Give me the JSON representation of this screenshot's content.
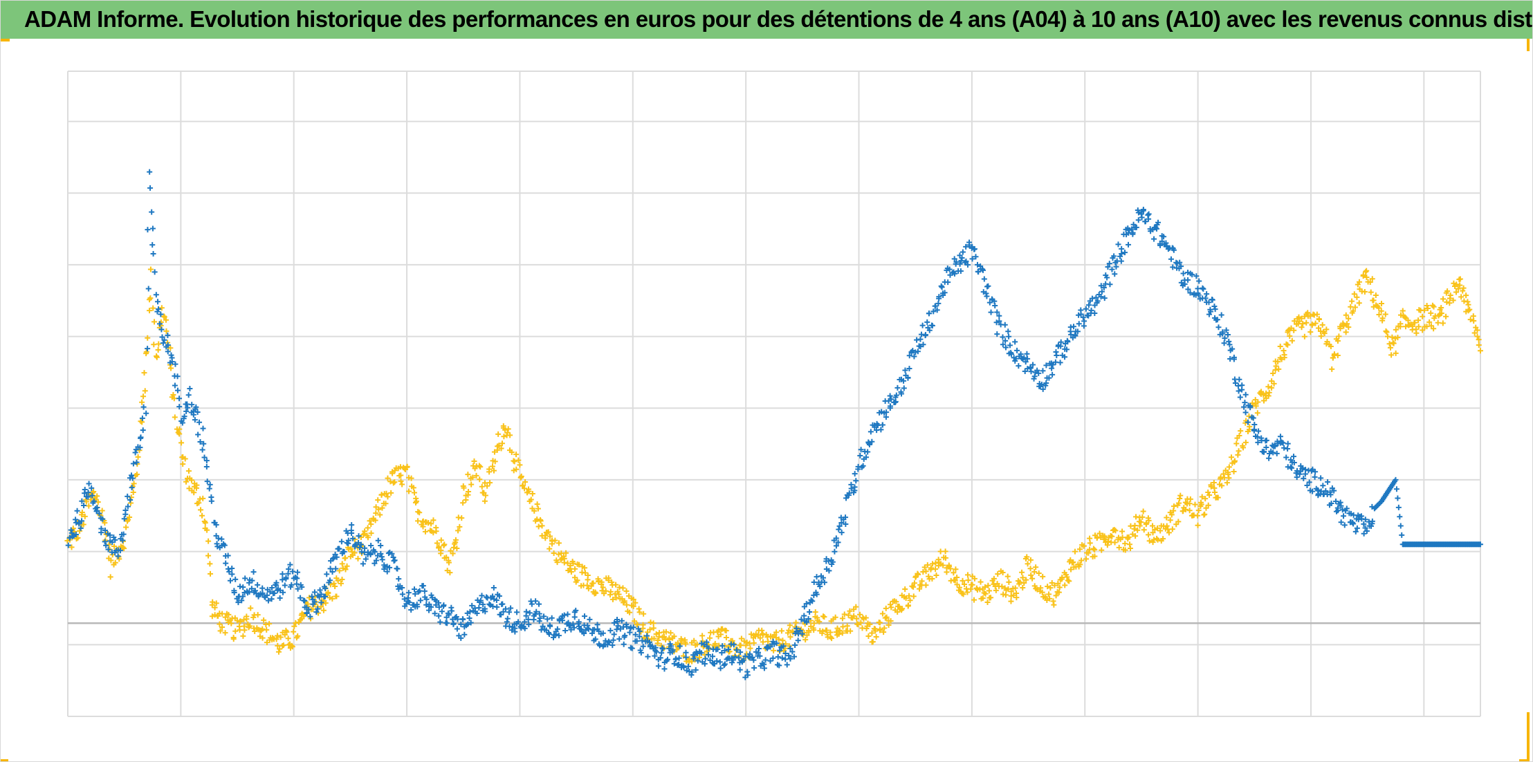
{
  "header": {
    "title": "ADAM Informe. Evolution historique des performances en euros pour des détentions de 4 ans (A04) à 10 ans (A10) avec les revenus connus distribués"
  },
  "colors": {
    "title_bg": "#7dc57a",
    "accent": "#f7b500",
    "series_blue": "#1f78c1",
    "series_yellow": "#f9c21a"
  },
  "chart_data": {
    "type": "scatter",
    "title": "ADAM Informe. Evolution historique des performances en euros pour des détentions de 4 ans (A04) à 10 ans (A10) avec les revenus connus distribués",
    "xlabel": "",
    "ylabel": "",
    "xlim": [
      0,
      100
    ],
    "ylim": [
      -13,
      77
    ],
    "grid": true,
    "legend": "none",
    "marker": "plus",
    "series": [
      {
        "color": "#f9c21a",
        "points": [
          [
            0,
            11
          ],
          [
            1,
            14
          ],
          [
            1.5,
            17
          ],
          [
            2,
            18
          ],
          [
            2.8,
            12
          ],
          [
            3,
            8
          ],
          [
            4,
            12
          ],
          [
            4.5,
            17
          ],
          [
            4.8,
            20
          ],
          [
            5.2,
            28
          ],
          [
            5.7,
            41
          ],
          [
            5.9,
            48
          ],
          [
            6.2,
            37
          ],
          [
            6.8,
            44
          ],
          [
            7.2,
            37
          ],
          [
            7.6,
            29
          ],
          [
            8.2,
            22
          ],
          [
            8.8,
            19
          ],
          [
            9.5,
            17
          ],
          [
            10,
            10
          ],
          [
            10.2,
            2
          ],
          [
            11,
            0
          ],
          [
            12,
            -1
          ],
          [
            13,
            1
          ],
          [
            14,
            -1
          ],
          [
            15,
            -3
          ],
          [
            16,
            -2
          ],
          [
            17,
            2
          ],
          [
            18,
            3
          ],
          [
            19,
            5
          ],
          [
            20,
            10
          ],
          [
            21,
            11
          ],
          [
            22,
            16
          ],
          [
            23,
            20
          ],
          [
            24,
            21
          ],
          [
            24.5,
            17
          ],
          [
            25,
            15
          ],
          [
            26,
            13
          ],
          [
            26.5,
            11
          ],
          [
            27,
            8
          ],
          [
            27.6,
            12
          ],
          [
            28,
            18
          ],
          [
            29,
            22
          ],
          [
            29.5,
            18
          ],
          [
            30,
            21
          ],
          [
            30.5,
            25
          ],
          [
            31,
            28
          ],
          [
            32,
            20
          ],
          [
            33,
            16
          ],
          [
            34,
            12
          ],
          [
            35,
            9
          ],
          [
            36,
            7
          ],
          [
            37,
            6
          ],
          [
            38,
            5
          ],
          [
            39,
            4
          ],
          [
            40,
            2
          ],
          [
            41,
            -1
          ],
          [
            42,
            -2
          ],
          [
            43,
            -3
          ],
          [
            44,
            -4
          ],
          [
            45,
            -3
          ],
          [
            46,
            -2
          ],
          [
            47,
            -3
          ],
          [
            48,
            -4
          ],
          [
            49,
            -2
          ],
          [
            50,
            -3
          ],
          [
            51,
            -2
          ],
          [
            52,
            -1
          ],
          [
            53,
            0
          ],
          [
            54,
            -1
          ],
          [
            55,
            0
          ],
          [
            56,
            1
          ],
          [
            57,
            -2
          ],
          [
            58,
            1
          ],
          [
            59,
            3
          ],
          [
            60,
            5
          ],
          [
            61,
            7
          ],
          [
            62,
            9
          ],
          [
            63,
            6
          ],
          [
            64,
            5
          ],
          [
            65,
            4
          ],
          [
            66,
            6
          ],
          [
            67,
            4
          ],
          [
            68,
            8
          ],
          [
            69,
            5
          ],
          [
            70,
            4
          ],
          [
            71,
            8
          ],
          [
            72,
            10
          ],
          [
            73,
            11
          ],
          [
            74,
            13
          ],
          [
            75,
            11
          ],
          [
            76,
            15
          ],
          [
            77,
            12
          ],
          [
            78,
            14
          ],
          [
            79,
            17
          ],
          [
            80,
            15
          ],
          [
            81,
            18
          ],
          [
            82,
            20
          ],
          [
            83,
            25
          ],
          [
            84,
            30
          ],
          [
            85,
            33
          ],
          [
            86,
            38
          ],
          [
            87,
            41
          ],
          [
            88,
            42
          ],
          [
            89,
            41
          ],
          [
            89.5,
            36
          ],
          [
            90,
            40
          ],
          [
            91,
            44
          ],
          [
            91.5,
            47
          ],
          [
            92,
            48
          ],
          [
            93,
            43
          ],
          [
            93.8,
            38
          ],
          [
            94.5,
            42
          ],
          [
            95.5,
            42
          ],
          [
            96.5,
            43
          ],
          [
            97,
            42
          ],
          [
            97.5,
            44
          ],
          [
            98,
            46
          ],
          [
            98.5,
            48
          ],
          [
            99,
            44
          ],
          [
            99.5,
            42
          ],
          [
            100,
            38
          ]
        ]
      },
      {
        "color": "#1f78c1",
        "points": [
          [
            0,
            12
          ],
          [
            1,
            15
          ],
          [
            1.5,
            19
          ],
          [
            2,
            17
          ],
          [
            2.5,
            13
          ],
          [
            3,
            11
          ],
          [
            3.5,
            10
          ],
          [
            4,
            14
          ],
          [
            4.5,
            20
          ],
          [
            5,
            24
          ],
          [
            5.5,
            30
          ],
          [
            5.8,
            63
          ],
          [
            6,
            52
          ],
          [
            6.3,
            44
          ],
          [
            6.8,
            40
          ],
          [
            7.5,
            36
          ],
          [
            8,
            29
          ],
          [
            8.5,
            32
          ],
          [
            9,
            30
          ],
          [
            9.5,
            26
          ],
          [
            10,
            20
          ],
          [
            10.3,
            14
          ],
          [
            11,
            10
          ],
          [
            12,
            4
          ],
          [
            13,
            6
          ],
          [
            14,
            4
          ],
          [
            15,
            5
          ],
          [
            16,
            7
          ],
          [
            17,
            2
          ],
          [
            18,
            4
          ],
          [
            19,
            9
          ],
          [
            20,
            13
          ],
          [
            21,
            9
          ],
          [
            22,
            10
          ],
          [
            23,
            8
          ],
          [
            24,
            3
          ],
          [
            25,
            4
          ],
          [
            26,
            2
          ],
          [
            27,
            1
          ],
          [
            28,
            -1
          ],
          [
            29,
            2
          ],
          [
            30,
            4
          ],
          [
            31,
            1
          ],
          [
            32,
            0
          ],
          [
            33,
            2
          ],
          [
            34,
            -1
          ],
          [
            35,
            0
          ],
          [
            36,
            1
          ],
          [
            37,
            -1
          ],
          [
            38,
            -2
          ],
          [
            39,
            -1
          ],
          [
            40,
            -2
          ],
          [
            41,
            -3
          ],
          [
            42,
            -5
          ],
          [
            43,
            -4
          ],
          [
            44,
            -6
          ],
          [
            45,
            -4
          ],
          [
            46,
            -5
          ],
          [
            47,
            -4
          ],
          [
            48,
            -6
          ],
          [
            49,
            -5
          ],
          [
            50,
            -4
          ],
          [
            51,
            -5
          ],
          [
            52,
            0
          ],
          [
            53,
            5
          ],
          [
            54,
            9
          ],
          [
            55,
            15
          ],
          [
            56,
            22
          ],
          [
            57,
            27
          ],
          [
            58,
            30
          ],
          [
            59,
            33
          ],
          [
            60,
            38
          ],
          [
            61,
            42
          ],
          [
            62,
            47
          ],
          [
            63,
            50
          ],
          [
            64,
            52
          ],
          [
            65,
            47
          ],
          [
            66,
            41
          ],
          [
            67,
            38
          ],
          [
            68,
            36
          ],
          [
            69,
            34
          ],
          [
            70,
            37
          ],
          [
            71,
            40
          ],
          [
            72,
            43
          ],
          [
            73,
            45
          ],
          [
            74,
            50
          ],
          [
            75,
            54
          ],
          [
            76,
            57
          ],
          [
            77,
            55
          ],
          [
            78,
            52
          ],
          [
            79,
            48
          ],
          [
            80,
            47
          ],
          [
            81,
            44
          ],
          [
            82,
            40
          ],
          [
            83,
            33
          ],
          [
            84,
            27
          ],
          [
            85,
            24
          ],
          [
            86,
            25
          ],
          [
            87,
            21
          ],
          [
            88,
            20
          ],
          [
            89,
            19
          ],
          [
            90,
            16
          ],
          [
            91,
            14
          ],
          [
            92,
            13
          ],
          [
            92.5,
            16
          ],
          [
            93,
            17
          ],
          [
            94,
            20
          ],
          [
            94.5,
            11
          ],
          [
            95,
            11
          ],
          [
            96,
            11
          ],
          [
            97,
            11
          ],
          [
            98,
            11
          ],
          [
            99,
            11
          ],
          [
            100,
            11
          ]
        ]
      }
    ]
  }
}
